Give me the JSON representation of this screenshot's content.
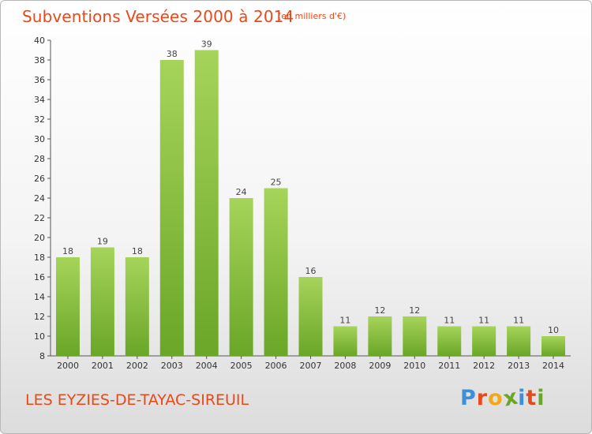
{
  "header": {
    "title": "Subventions Versées 2000 à 2014",
    "unit": "(en milliers d'€)"
  },
  "footer": {
    "commune": "LES EYZIES-DE-TAYAC-SIREUIL",
    "logo": "Proxiti"
  },
  "colors": {
    "accent": "#e8491a",
    "bar_light": "#a6d45a",
    "bar_dark": "#6aa628",
    "logo": [
      "#3d8fd6",
      "#e8491a",
      "#f2a81c",
      "#6aa628",
      "#3d8fd6",
      "#e8491a",
      "#6aa628"
    ]
  },
  "chart_data": {
    "type": "bar",
    "categories": [
      "2000",
      "2001",
      "2002",
      "2003",
      "2004",
      "2005",
      "2006",
      "2007",
      "2008",
      "2009",
      "2010",
      "2011",
      "2012",
      "2013",
      "2014"
    ],
    "values": [
      18,
      19,
      18,
      38,
      39,
      24,
      25,
      16,
      11,
      12,
      12,
      11,
      11,
      11,
      10
    ],
    "ylim": [
      8,
      40
    ],
    "yticks": [
      8,
      10,
      12,
      14,
      16,
      18,
      20,
      22,
      24,
      26,
      28,
      30,
      32,
      34,
      36,
      38,
      40
    ],
    "grid": false,
    "legend": "none",
    "title": "Subventions Versées 2000 à 2014",
    "ylabel": "(en milliers d'€)",
    "xlabel": ""
  }
}
